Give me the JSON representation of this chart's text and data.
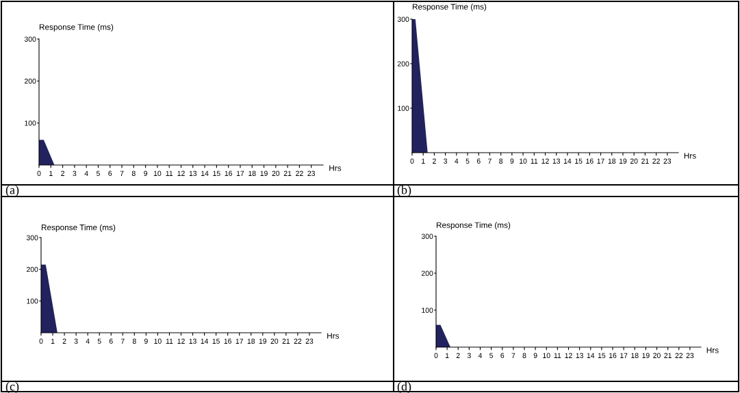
{
  "chart_data": [
    {
      "type": "area",
      "ylabel": "Response Time (ms)",
      "xlabel": "Hrs",
      "annotations": [
        "(a)"
      ],
      "x": [
        0,
        0.4,
        1.3
      ],
      "values": [
        60,
        60,
        0
      ],
      "color": "#22225e",
      "xlim": [
        0,
        24
      ],
      "ylim": [
        0,
        300
      ],
      "xticks": [
        0,
        1,
        2,
        3,
        4,
        5,
        6,
        7,
        8,
        9,
        10,
        11,
        12,
        13,
        14,
        15,
        16,
        17,
        18,
        19,
        20,
        21,
        22,
        23
      ],
      "yticks": [
        100,
        200,
        300
      ],
      "grid": false,
      "legend": false
    },
    {
      "type": "area",
      "ylabel": "Response Time (ms)",
      "xlabel": "Hrs",
      "annotations": [
        "(b)"
      ],
      "x": [
        0,
        0.3,
        1.4
      ],
      "values": [
        300,
        300,
        0
      ],
      "color": "#22225e",
      "xlim": [
        0,
        24
      ],
      "ylim": [
        0,
        300
      ],
      "xticks": [
        0,
        1,
        2,
        3,
        4,
        5,
        6,
        7,
        8,
        9,
        10,
        11,
        12,
        13,
        14,
        15,
        16,
        17,
        18,
        19,
        20,
        21,
        22,
        23
      ],
      "yticks": [
        100,
        200,
        300
      ],
      "grid": false,
      "legend": false
    },
    {
      "type": "area",
      "ylabel": "Response Time (ms)",
      "xlabel": "Hrs",
      "annotations": [
        "(c)"
      ],
      "x": [
        0,
        0.4,
        1.4
      ],
      "values": [
        215,
        215,
        0
      ],
      "color": "#22225e",
      "xlim": [
        0,
        24
      ],
      "ylim": [
        0,
        300
      ],
      "xticks": [
        0,
        1,
        2,
        3,
        4,
        5,
        6,
        7,
        8,
        9,
        10,
        11,
        12,
        13,
        14,
        15,
        16,
        17,
        18,
        19,
        20,
        21,
        22,
        23
      ],
      "yticks": [
        100,
        200,
        300
      ],
      "grid": false,
      "legend": false
    },
    {
      "type": "area",
      "ylabel": "Response Time (ms)",
      "xlabel": "Hrs",
      "annotations": [
        "(d)"
      ],
      "x": [
        0,
        0.4,
        1.3
      ],
      "values": [
        60,
        60,
        0
      ],
      "color": "#22225e",
      "xlim": [
        0,
        24
      ],
      "ylim": [
        0,
        300
      ],
      "xticks": [
        0,
        1,
        2,
        3,
        4,
        5,
        6,
        7,
        8,
        9,
        10,
        11,
        12,
        13,
        14,
        15,
        16,
        17,
        18,
        19,
        20,
        21,
        22,
        23
      ],
      "yticks": [
        100,
        200,
        300
      ],
      "grid": false,
      "legend": false
    }
  ]
}
